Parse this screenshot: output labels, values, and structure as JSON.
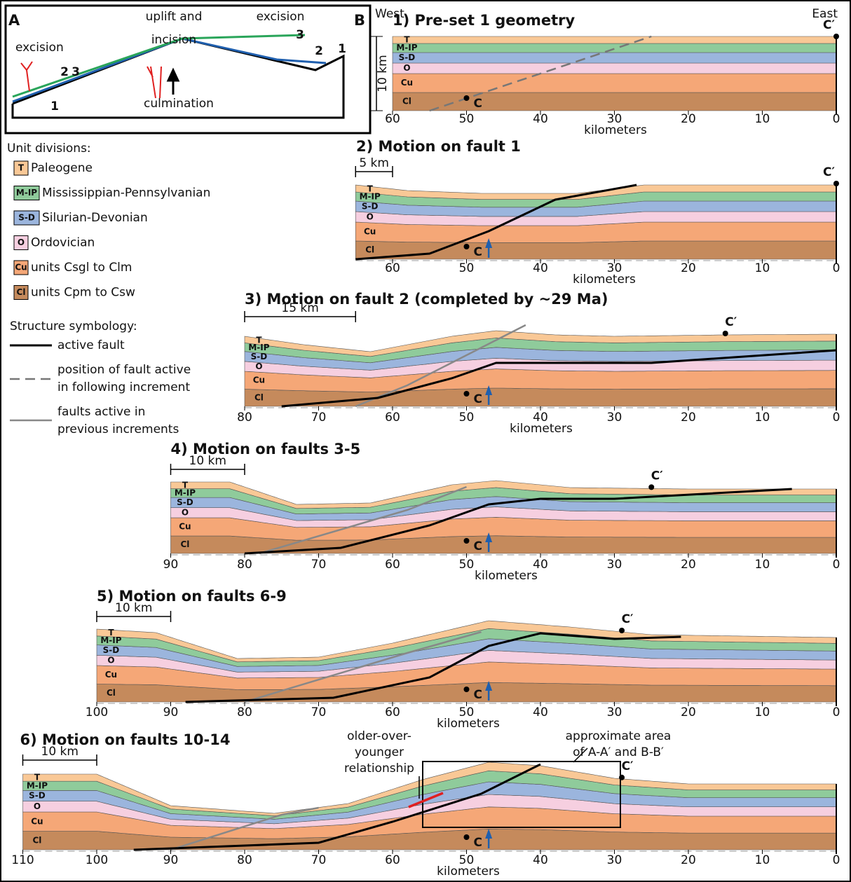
{
  "panel_a": {
    "label": "A",
    "texts": [
      "excision",
      "uplift and",
      "incision",
      "excision",
      "culmination"
    ],
    "fault_numbers": [
      "1",
      "2",
      "3",
      "2",
      "3",
      "1"
    ]
  },
  "legend": {
    "title": "Unit divisions:",
    "units": [
      {
        "code": "T",
        "name": "Paleogene"
      },
      {
        "code": "M-IP",
        "name": "Mississippian-Pennsylvanian"
      },
      {
        "code": "S-D",
        "name": "Silurian-Devonian"
      },
      {
        "code": "O",
        "name": "Ordovician"
      },
      {
        "code": "Cu",
        "name": "units Csgl to Clm"
      },
      {
        "code": "Cl",
        "name": "units Cpm to Csw"
      }
    ],
    "structure_title": "Structure symbology:",
    "symbols": [
      {
        "lines": [
          "active fault"
        ]
      },
      {
        "lines": [
          "position of fault active",
          "in following increment"
        ]
      },
      {
        "lines": [
          "faults active in",
          "previous increments"
        ]
      }
    ]
  },
  "panel_b": {
    "label": "B",
    "west": "West",
    "east": "East",
    "axis_label": "kilometers",
    "c": "C",
    "c_prime": "C′",
    "depth_scale": "10 km",
    "units": [
      "T",
      "M-IP",
      "S-D",
      "O",
      "Cu",
      "Cl"
    ],
    "panels": [
      {
        "title": "1) Pre-set 1 geometry",
        "xticks": [
          60,
          50,
          40,
          30,
          20,
          10,
          0
        ]
      },
      {
        "title": "2) Motion on fault 1",
        "scale": "5 km",
        "xticks": [
          60,
          50,
          40,
          30,
          20,
          10,
          0
        ]
      },
      {
        "title": "3) Motion on fault 2 (completed by ~29 Ma)",
        "scale": "15 km",
        "xticks": [
          80,
          70,
          60,
          50,
          40,
          30,
          20,
          10,
          0
        ]
      },
      {
        "title": "4) Motion on faults 3-5",
        "scale": "10 km",
        "xticks": [
          90,
          80,
          70,
          60,
          50,
          40,
          30,
          20,
          10,
          0
        ]
      },
      {
        "title": "5) Motion on faults 6-9",
        "scale": "10 km",
        "xticks": [
          100,
          90,
          80,
          70,
          60,
          50,
          40,
          30,
          20,
          10,
          0
        ]
      },
      {
        "title": "6) Motion on faults 10-14",
        "scale": "10 km",
        "xticks": [
          110,
          100,
          90,
          80,
          70,
          60,
          50,
          40,
          30,
          20,
          10,
          0
        ]
      }
    ],
    "annotations": [
      "older-over-",
      "younger",
      "relationship",
      "approximate area",
      "of A-A′ and B-B′"
    ]
  }
}
